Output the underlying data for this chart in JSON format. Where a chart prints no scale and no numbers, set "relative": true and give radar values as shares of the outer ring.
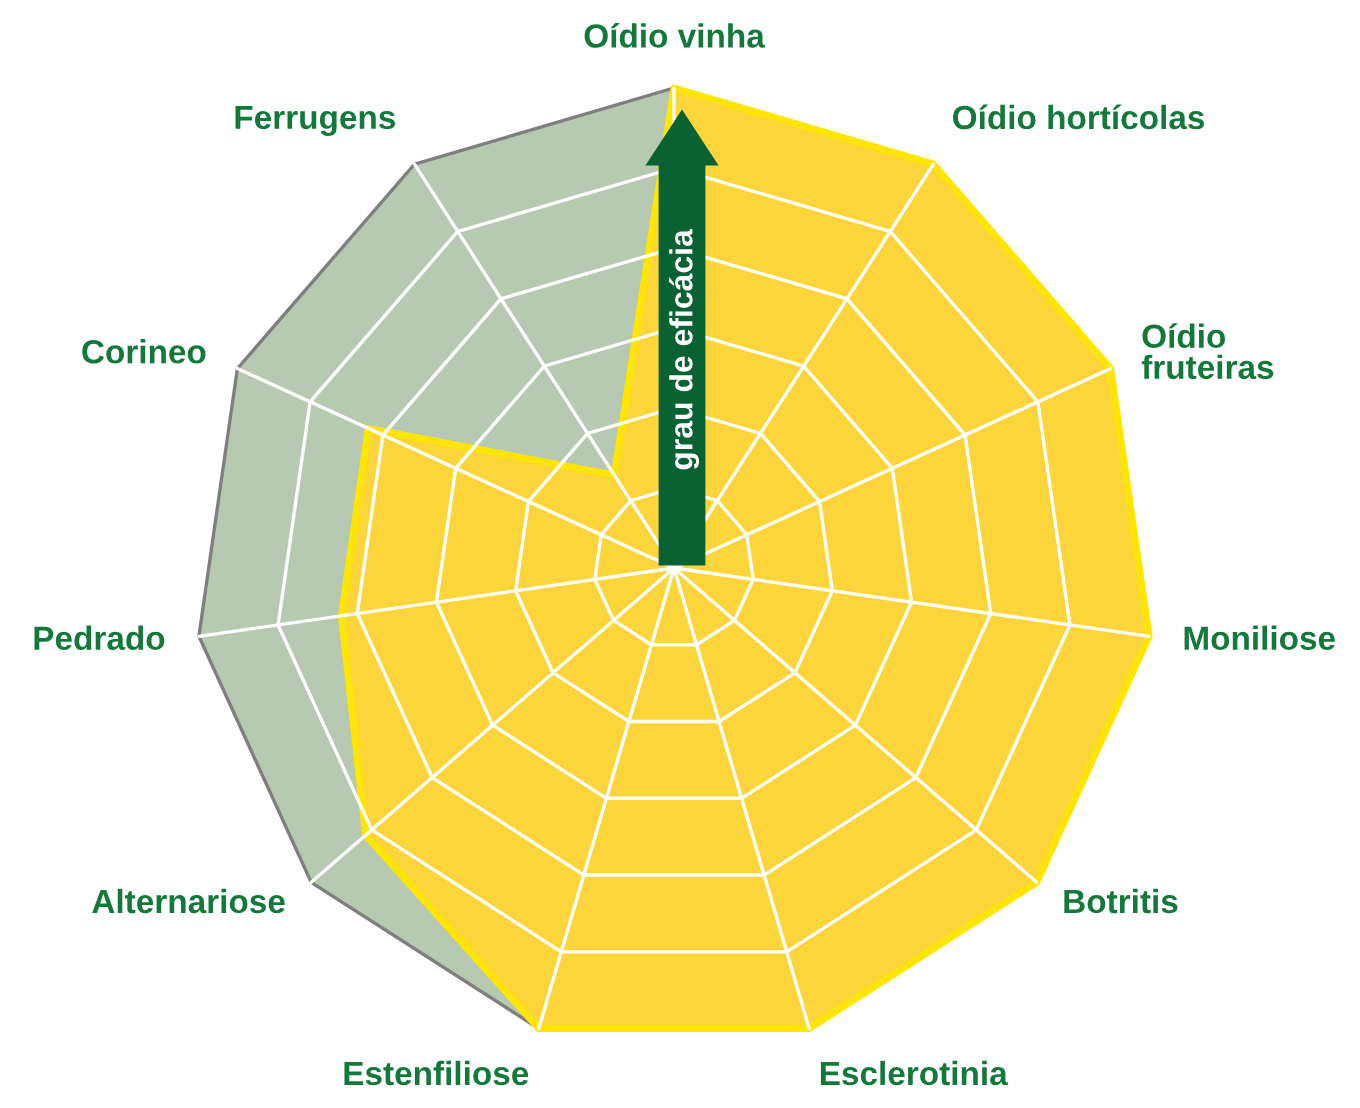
{
  "chart_data": {
    "type": "radar",
    "relative": true,
    "grid": true,
    "legend": false,
    "categories": [
      "Oídio vinha",
      "Oídio hortícolas",
      "Oídio\nfruteiras",
      "Moniliose",
      "Botritis",
      "Esclerotinia",
      "Estenfiliose",
      "Alternariose",
      "Pedrado",
      "Corineo",
      "Ferrugens"
    ],
    "series": [
      {
        "color": "#fcd53a",
        "values": [
          1,
          1,
          1,
          1,
          1,
          1,
          1,
          0.85,
          0.7,
          0.7,
          0.23
        ]
      }
    ],
    "annotations": [
      "grau de eficácia"
    ]
  }
}
